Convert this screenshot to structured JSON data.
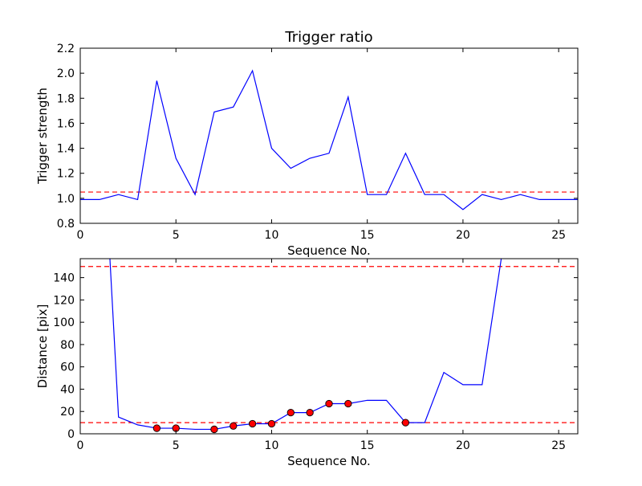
{
  "chart_data": [
    {
      "type": "line",
      "title": "Trigger ratio",
      "xlabel": "Sequence No.",
      "ylabel": "Trigger strength",
      "xlim": [
        0,
        26
      ],
      "ylim": [
        0.8,
        2.2
      ],
      "xticks": [
        "0",
        "5",
        "10",
        "15",
        "20",
        "25"
      ],
      "yticks": [
        "0.8",
        "1.0",
        "1.2",
        "1.4",
        "1.6",
        "1.8",
        "2.0",
        "2.2"
      ],
      "grid": false,
      "series": [
        {
          "color": "#0000ff",
          "x": [
            0,
            1,
            2,
            3,
            4,
            5,
            6,
            7,
            8,
            9,
            10,
            11,
            12,
            13,
            14,
            15,
            16,
            17,
            18,
            19,
            20,
            21,
            22,
            23,
            24,
            25,
            26
          ],
          "y": [
            0.99,
            0.99,
            1.03,
            0.99,
            1.94,
            1.32,
            1.03,
            1.69,
            1.73,
            2.02,
            1.4,
            1.24,
            1.32,
            1.36,
            1.81,
            1.03,
            1.03,
            1.36,
            1.03,
            1.03,
            0.91,
            1.03,
            0.99,
            1.03,
            0.99,
            0.99,
            0.99
          ]
        }
      ],
      "reference_lines": [
        {
          "y": 1.05,
          "color": "#ff0000",
          "style": "dashed"
        }
      ]
    },
    {
      "type": "line",
      "title": "",
      "xlabel": "Sequence No.",
      "ylabel": "Distance [pix]",
      "xlim": [
        0,
        26
      ],
      "ylim": [
        0,
        157
      ],
      "xticks": [
        "0",
        "5",
        "10",
        "15",
        "20",
        "25"
      ],
      "yticks": [
        "0",
        "20",
        "40",
        "60",
        "80",
        "100",
        "120",
        "140"
      ],
      "grid": false,
      "series": [
        {
          "color": "#0000ff",
          "x": [
            1.55,
            2,
            3,
            4,
            5,
            6,
            7,
            8,
            9,
            10,
            11,
            12,
            13,
            14,
            15,
            16,
            17,
            18,
            19,
            20,
            21,
            22
          ],
          "y": [
            157,
            15,
            8,
            5,
            5,
            4,
            4,
            7,
            9,
            9,
            19,
            19,
            27,
            27,
            30,
            30,
            10,
            10,
            55,
            44,
            44,
            157
          ]
        }
      ],
      "markers": {
        "color": "#ff0000",
        "x": [
          4,
          5,
          7,
          8,
          9,
          10,
          11,
          12,
          13,
          14,
          17
        ],
        "y": [
          5,
          5,
          4,
          7,
          9,
          9,
          19,
          19,
          27,
          27,
          10
        ]
      },
      "reference_lines": [
        {
          "y": 10,
          "color": "#ff0000",
          "style": "dashed"
        },
        {
          "y": 150,
          "color": "#ff0000",
          "style": "dashed"
        }
      ]
    }
  ]
}
